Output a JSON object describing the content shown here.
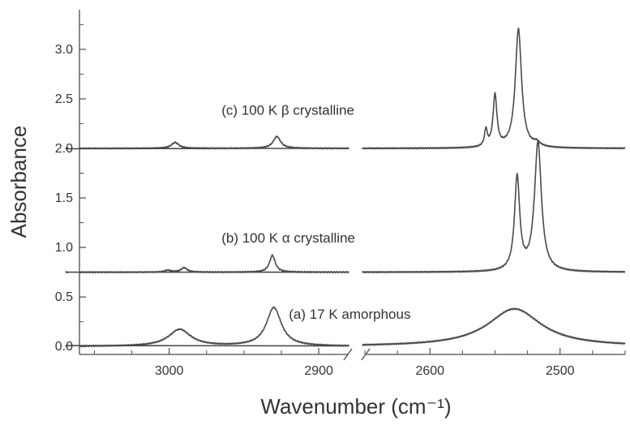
{
  "chart_data": {
    "type": "line",
    "title": "",
    "xlabel": "Wavenumber (cm⁻¹)",
    "ylabel": "Absorbance",
    "x_break": [
      2880,
      2650
    ],
    "xlim_left": [
      3060,
      2880
    ],
    "xlim_right": [
      2650,
      2450
    ],
    "x_ticks": [
      3000,
      2900,
      2600,
      2500
    ],
    "ylim": [
      -0.08,
      3.4
    ],
    "y_ticks": [
      "0.0",
      "0.5",
      "1.0",
      "1.5",
      "2.0",
      "2.5",
      "3.0"
    ],
    "grid": false,
    "legend": "none",
    "line_color": "#4a4a4a",
    "series": [
      {
        "name": "(a) 17 K amorphous",
        "baseline": 0.0,
        "peaks": [
          {
            "center": 2993,
            "height": 0.17,
            "width": 9
          },
          {
            "center": 2930,
            "height": 0.39,
            "width": 6
          },
          {
            "center": 2535,
            "height": 0.38,
            "width": 25
          }
        ]
      },
      {
        "name": "(b) 100 K α crystalline",
        "baseline": 0.75,
        "peaks": [
          {
            "center": 3001,
            "height": 0.02,
            "width": 2.5
          },
          {
            "center": 2990,
            "height": 0.045,
            "width": 2.5
          },
          {
            "center": 2931,
            "height": 0.17,
            "width": 2.3
          },
          {
            "center": 2533,
            "height": 0.94,
            "width": 2.4
          },
          {
            "center": 2517,
            "height": 1.3,
            "width": 3.2
          }
        ]
      },
      {
        "name": "(c) 100 K β crystalline",
        "baseline": 2.0,
        "peaks": [
          {
            "center": 2996,
            "height": 0.06,
            "width": 3
          },
          {
            "center": 2928,
            "height": 0.12,
            "width": 3
          },
          {
            "center": 2557,
            "height": 0.17,
            "width": 1.3
          },
          {
            "center": 2550,
            "height": 0.52,
            "width": 1.8
          },
          {
            "center": 2532,
            "height": 1.2,
            "width": 2.9
          },
          {
            "center": 2518,
            "height": 0.04,
            "width": 3
          }
        ]
      }
    ],
    "annotations": [
      {
        "text": "(c) 100 K β crystalline",
        "x": 2965,
        "y": 2.34
      },
      {
        "text": "(b) 100 K α crystalline",
        "x": 2965,
        "y": 1.05
      },
      {
        "text": "(a) 17 K amorphous",
        "x": 2920,
        "y": 0.28
      }
    ]
  }
}
